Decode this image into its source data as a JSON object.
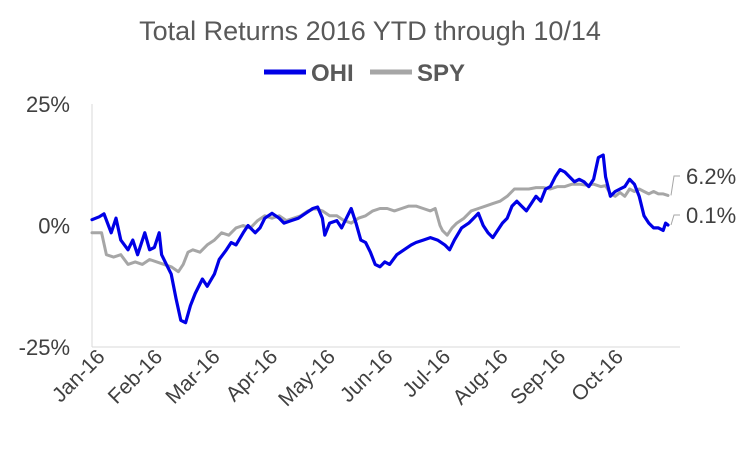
{
  "chart_data": {
    "type": "line",
    "title": "Total Returns 2016 YTD through 10/14",
    "xlabel": "",
    "ylabel": "",
    "ylim": [
      -25,
      25
    ],
    "yticks": [
      "25%",
      "0%",
      "-25%"
    ],
    "ytick_values": [
      25,
      0,
      -25
    ],
    "xticks": [
      "Jan-16",
      "Feb-16",
      "Mar-16",
      "Apr-16",
      "May-16",
      "Jun-16",
      "Jul-16",
      "Aug-16",
      "Sep-16",
      "Oct-16"
    ],
    "grid": false,
    "legend_position": "top",
    "end_labels": [
      {
        "series": "SPY",
        "text": "6.2%",
        "value": 6.2
      },
      {
        "series": "OHI",
        "text": "0.1%",
        "value": 0.1
      }
    ],
    "series": [
      {
        "name": "OHI",
        "color": "#0000e6",
        "points": [
          [
            0,
            1.2
          ],
          [
            3,
            1.8
          ],
          [
            5,
            2.4
          ],
          [
            8,
            -1.5
          ],
          [
            10,
            1.5
          ],
          [
            12,
            -3.0
          ],
          [
            15,
            -5.0
          ],
          [
            17,
            -3.0
          ],
          [
            19,
            -6.0
          ],
          [
            22,
            -1.5
          ],
          [
            24,
            -5.0
          ],
          [
            26,
            -4.5
          ],
          [
            28,
            -1.5
          ],
          [
            29,
            -6.0
          ],
          [
            31,
            -8.0
          ],
          [
            33,
            -10.0
          ],
          [
            35,
            -15.0
          ],
          [
            37,
            -19.5
          ],
          [
            39,
            -20.0
          ],
          [
            41,
            -16.5
          ],
          [
            43,
            -14.0
          ],
          [
            46,
            -11.0
          ],
          [
            48,
            -12.5
          ],
          [
            51,
            -10.0
          ],
          [
            53,
            -7.0
          ],
          [
            56,
            -5.0
          ],
          [
            58,
            -3.5
          ],
          [
            60,
            -4.0
          ],
          [
            63,
            -1.5
          ],
          [
            65,
            0.0
          ],
          [
            68,
            -1.5
          ],
          [
            70,
            -0.5
          ],
          [
            72,
            1.5
          ],
          [
            75,
            2.5
          ],
          [
            78,
            1.5
          ],
          [
            80,
            0.5
          ],
          [
            83,
            1.0
          ],
          [
            86,
            1.5
          ],
          [
            89,
            2.5
          ],
          [
            92,
            3.5
          ],
          [
            94,
            3.8
          ],
          [
            96,
            1.5
          ],
          [
            97,
            -2.0
          ],
          [
            99,
            0.5
          ],
          [
            102,
            1.0
          ],
          [
            104,
            -0.5
          ],
          [
            106,
            1.5
          ],
          [
            108,
            3.5
          ],
          [
            110,
            0.5
          ],
          [
            112,
            -3.0
          ],
          [
            114,
            -3.5
          ],
          [
            116,
            -5.5
          ],
          [
            118,
            -8.0
          ],
          [
            120,
            -8.5
          ],
          [
            122,
            -7.5
          ],
          [
            124,
            -8.0
          ],
          [
            127,
            -6.0
          ],
          [
            130,
            -5.0
          ],
          [
            133,
            -4.0
          ],
          [
            135,
            -3.5
          ],
          [
            138,
            -3.0
          ],
          [
            141,
            -2.5
          ],
          [
            144,
            -3.0
          ],
          [
            147,
            -4.0
          ],
          [
            149,
            -5.0
          ],
          [
            151,
            -3.0
          ],
          [
            154,
            -0.5
          ],
          [
            157,
            0.5
          ],
          [
            159,
            1.5
          ],
          [
            161,
            2.5
          ],
          [
            163,
            0.0
          ],
          [
            165,
            -1.5
          ],
          [
            167,
            -2.5
          ],
          [
            169,
            -1.0
          ],
          [
            171,
            0.5
          ],
          [
            173,
            1.5
          ],
          [
            175,
            4.0
          ],
          [
            177,
            5.0
          ],
          [
            179,
            4.0
          ],
          [
            181,
            3.0
          ],
          [
            183,
            4.5
          ],
          [
            185,
            6.0
          ],
          [
            187,
            5.0
          ],
          [
            189,
            7.5
          ],
          [
            191,
            8.0
          ],
          [
            193,
            10.0
          ],
          [
            195,
            11.5
          ],
          [
            197,
            11.0
          ],
          [
            199,
            10.0
          ],
          [
            201,
            9.0
          ],
          [
            203,
            9.5
          ],
          [
            205,
            9.0
          ],
          [
            207,
            8.0
          ],
          [
            209,
            9.5
          ],
          [
            211,
            14.0
          ],
          [
            213,
            14.5
          ],
          [
            214,
            10.0
          ],
          [
            216,
            6.0
          ],
          [
            218,
            7.0
          ],
          [
            220,
            7.5
          ],
          [
            222,
            8.0
          ],
          [
            224,
            9.5
          ],
          [
            226,
            8.5
          ],
          [
            228,
            6.0
          ],
          [
            230,
            2.0
          ],
          [
            232,
            0.5
          ],
          [
            234,
            -0.5
          ],
          [
            236,
            -0.5
          ],
          [
            238,
            -1.0
          ],
          [
            239,
            0.5
          ],
          [
            240,
            0.1
          ]
        ]
      },
      {
        "name": "SPY",
        "color": "#a6a6a6",
        "points": [
          [
            0,
            -1.5
          ],
          [
            4,
            -1.5
          ],
          [
            6,
            -6.0
          ],
          [
            9,
            -6.5
          ],
          [
            12,
            -6.0
          ],
          [
            15,
            -8.0
          ],
          [
            18,
            -7.5
          ],
          [
            21,
            -8.0
          ],
          [
            24,
            -7.0
          ],
          [
            27,
            -7.5
          ],
          [
            30,
            -8.0
          ],
          [
            33,
            -8.5
          ],
          [
            36,
            -9.5
          ],
          [
            38,
            -8.0
          ],
          [
            40,
            -5.5
          ],
          [
            42,
            -5.0
          ],
          [
            45,
            -5.5
          ],
          [
            48,
            -4.0
          ],
          [
            51,
            -3.0
          ],
          [
            54,
            -1.5
          ],
          [
            57,
            -2.0
          ],
          [
            60,
            -0.5
          ],
          [
            63,
            0.0
          ],
          [
            66,
            -0.5
          ],
          [
            69,
            1.0
          ],
          [
            72,
            2.0
          ],
          [
            75,
            1.5
          ],
          [
            78,
            2.0
          ],
          [
            81,
            1.0
          ],
          [
            84,
            1.5
          ],
          [
            87,
            2.0
          ],
          [
            90,
            3.0
          ],
          [
            93,
            3.5
          ],
          [
            96,
            3.0
          ],
          [
            99,
            2.0
          ],
          [
            102,
            2.0
          ],
          [
            105,
            1.0
          ],
          [
            108,
            0.5
          ],
          [
            111,
            1.5
          ],
          [
            114,
            2.0
          ],
          [
            117,
            3.0
          ],
          [
            120,
            3.5
          ],
          [
            123,
            3.5
          ],
          [
            126,
            3.0
          ],
          [
            129,
            3.5
          ],
          [
            132,
            4.0
          ],
          [
            135,
            4.0
          ],
          [
            138,
            3.5
          ],
          [
            141,
            3.0
          ],
          [
            143,
            3.5
          ],
          [
            145,
            0.0
          ],
          [
            146,
            -1.0
          ],
          [
            148,
            -2.0
          ],
          [
            150,
            -0.5
          ],
          [
            152,
            0.5
          ],
          [
            155,
            1.5
          ],
          [
            158,
            3.0
          ],
          [
            161,
            3.5
          ],
          [
            164,
            4.0
          ],
          [
            167,
            4.5
          ],
          [
            170,
            5.0
          ],
          [
            173,
            6.0
          ],
          [
            176,
            7.5
          ],
          [
            179,
            7.5
          ],
          [
            182,
            7.5
          ],
          [
            185,
            7.8
          ],
          [
            188,
            7.8
          ],
          [
            191,
            7.5
          ],
          [
            194,
            8.0
          ],
          [
            197,
            8.0
          ],
          [
            200,
            8.5
          ],
          [
            203,
            8.5
          ],
          [
            206,
            8.3
          ],
          [
            209,
            8.5
          ],
          [
            212,
            8.0
          ],
          [
            214,
            8.2
          ],
          [
            216,
            6.5
          ],
          [
            218,
            6.0
          ],
          [
            220,
            6.8
          ],
          [
            222,
            6.0
          ],
          [
            224,
            7.5
          ],
          [
            226,
            7.0
          ],
          [
            228,
            7.5
          ],
          [
            230,
            7.0
          ],
          [
            232,
            6.5
          ],
          [
            234,
            7.0
          ],
          [
            236,
            6.5
          ],
          [
            238,
            6.5
          ],
          [
            240,
            6.2
          ]
        ]
      }
    ]
  }
}
